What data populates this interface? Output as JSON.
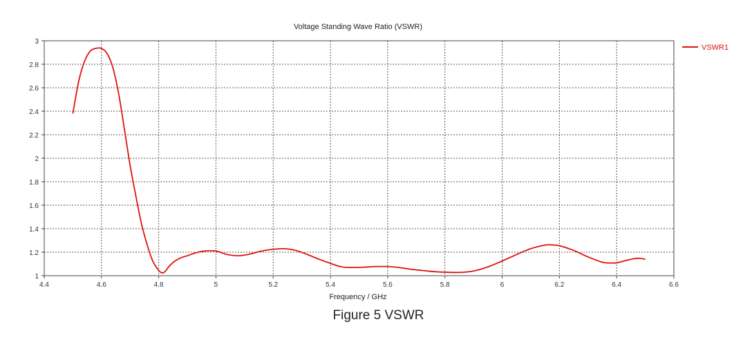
{
  "chart_data": {
    "type": "line",
    "title": "Voltage Standing Wave Ratio (VSWR)",
    "xlabel": "Frequency / GHz",
    "ylabel": "",
    "xlim": [
      4.4,
      6.6
    ],
    "ylim": [
      1,
      3
    ],
    "xticks": [
      4.4,
      4.6,
      4.8,
      5,
      5.2,
      5.4,
      5.6,
      5.8,
      6,
      6.2,
      6.4,
      6.6
    ],
    "xtick_labels": [
      "4.4",
      "4.6",
      "4.8",
      "5",
      "5.2",
      "5.4",
      "5.6",
      "5.8",
      "6",
      "6.2",
      "6.4",
      "6.6"
    ],
    "yticks": [
      1,
      1.2,
      1.4,
      1.6,
      1.8,
      2,
      2.2,
      2.4,
      2.6,
      2.8,
      3
    ],
    "ytick_labels": [
      "1",
      "1.2",
      "1.4",
      "1.6",
      "1.8",
      "2",
      "2.2",
      "2.4",
      "2.6",
      "2.8",
      "3"
    ],
    "grid": true,
    "legend_position": "right",
    "series": [
      {
        "name": "VSWR1",
        "color": "#dd1111",
        "x": [
          4.5,
          4.52,
          4.54,
          4.56,
          4.58,
          4.6,
          4.62,
          4.64,
          4.66,
          4.68,
          4.7,
          4.72,
          4.74,
          4.76,
          4.78,
          4.8,
          4.81,
          4.82,
          4.83,
          4.84,
          4.86,
          4.88,
          4.9,
          4.93,
          4.96,
          5.0,
          5.04,
          5.08,
          5.12,
          5.16,
          5.2,
          5.24,
          5.28,
          5.32,
          5.36,
          5.4,
          5.44,
          5.48,
          5.52,
          5.56,
          5.6,
          5.64,
          5.68,
          5.72,
          5.76,
          5.8,
          5.85,
          5.9,
          5.95,
          6.0,
          6.05,
          6.1,
          6.15,
          6.17,
          6.2,
          6.25,
          6.3,
          6.35,
          6.38,
          6.4,
          6.43,
          6.46,
          6.48,
          6.5
        ],
        "y": [
          2.38,
          2.65,
          2.82,
          2.91,
          2.935,
          2.935,
          2.89,
          2.77,
          2.55,
          2.25,
          1.94,
          1.68,
          1.44,
          1.26,
          1.12,
          1.045,
          1.025,
          1.03,
          1.06,
          1.09,
          1.13,
          1.155,
          1.17,
          1.195,
          1.21,
          1.21,
          1.18,
          1.17,
          1.185,
          1.21,
          1.225,
          1.23,
          1.215,
          1.18,
          1.14,
          1.105,
          1.075,
          1.07,
          1.073,
          1.078,
          1.078,
          1.07,
          1.055,
          1.045,
          1.035,
          1.03,
          1.028,
          1.04,
          1.075,
          1.125,
          1.18,
          1.23,
          1.26,
          1.262,
          1.255,
          1.215,
          1.16,
          1.115,
          1.108,
          1.11,
          1.128,
          1.145,
          1.148,
          1.14
        ]
      }
    ]
  },
  "caption": "Figure 5  VSWR"
}
